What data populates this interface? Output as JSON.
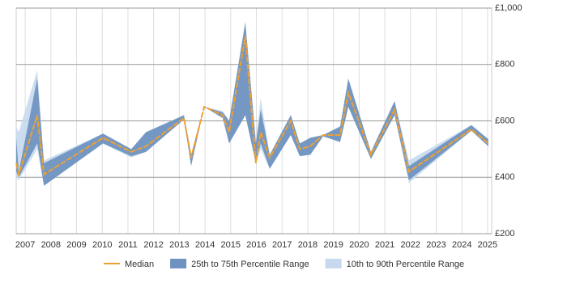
{
  "chart_data": {
    "type": "range-line",
    "x": [
      2006.65,
      2006.75,
      2007.47,
      2007.73,
      2010.03,
      2011.13,
      2011.7,
      2013.18,
      2013.46,
      2013.97,
      2014.69,
      2014.94,
      2015.57,
      2015.98,
      2016.17,
      2016.52,
      2017.34,
      2017.69,
      2018.1,
      2018.6,
      2019.26,
      2019.58,
      2020.46,
      2021.38,
      2021.94,
      2024.37,
      2025.03
    ],
    "series": [
      {
        "name": "Median",
        "color": "#f0a030",
        "values": [
          450,
          410,
          620,
          410,
          540,
          490,
          510,
          610,
          470,
          650,
          620,
          560,
          900,
          450,
          560,
          470,
          600,
          500,
          510,
          550,
          550,
          700,
          480,
          640,
          420,
          570,
          520
        ]
      },
      {
        "name": "25th to 75th Percentile Range",
        "color": "#6f93c0",
        "low": [
          420,
          400,
          520,
          370,
          520,
          475,
          490,
          605,
          440,
          650,
          610,
          520,
          620,
          450,
          520,
          430,
          550,
          475,
          480,
          545,
          525,
          650,
          465,
          620,
          390,
          565,
          510
        ],
        "high": [
          540,
          420,
          750,
          450,
          555,
          500,
          560,
          620,
          480,
          650,
          630,
          600,
          950,
          520,
          640,
          480,
          620,
          520,
          540,
          550,
          580,
          750,
          490,
          670,
          440,
          585,
          535
        ]
      },
      {
        "name": "10th to 90th Percentile Range",
        "color": "#c6d9ee",
        "low": [
          400,
          390,
          500,
          370,
          520,
          470,
          490,
          605,
          440,
          650,
          610,
          520,
          620,
          450,
          500,
          430,
          550,
          475,
          480,
          545,
          525,
          650,
          465,
          620,
          380,
          565,
          510
        ],
        "high": [
          580,
          560,
          780,
          460,
          555,
          500,
          560,
          620,
          480,
          650,
          635,
          600,
          950,
          530,
          680,
          480,
          620,
          520,
          540,
          550,
          580,
          750,
          490,
          670,
          460,
          585,
          535
        ]
      }
    ],
    "xlim": [
      2006.65,
      2025.16
    ],
    "xticks": [
      2007,
      2008,
      2009,
      2010,
      2011,
      2012,
      2013,
      2014,
      2015,
      2016,
      2017,
      2018,
      2019,
      2020,
      2021,
      2022,
      2023,
      2024,
      2025
    ],
    "ylim": [
      200,
      1000
    ],
    "yticks": [
      {
        "value": 200,
        "label": "£200"
      },
      {
        "value": 400,
        "label": "£400"
      },
      {
        "value": 600,
        "label": "£600"
      },
      {
        "value": 800,
        "label": "£800"
      },
      {
        "value": 1000,
        "label": "£1,000"
      }
    ],
    "grid": true
  }
}
